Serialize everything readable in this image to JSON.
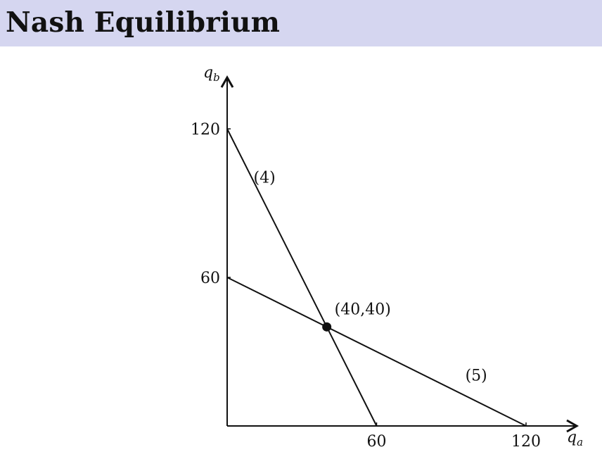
{
  "header": {
    "title": "Nash Equilibrium"
  },
  "chart_data": {
    "type": "line",
    "xlabel": "q_a",
    "ylabel": "q_b",
    "xlim": [
      0,
      125
    ],
    "ylim": [
      0,
      125
    ],
    "x_ticks": [
      60,
      120
    ],
    "y_ticks": [
      60,
      120
    ],
    "series": [
      {
        "name": "(4)",
        "points": [
          [
            0,
            120
          ],
          [
            60,
            0
          ]
        ]
      },
      {
        "name": "(5)",
        "points": [
          [
            0,
            60
          ],
          [
            120,
            0
          ]
        ]
      }
    ],
    "equilibrium": {
      "label": "(40,40)",
      "x": 40,
      "y": 40
    },
    "colors": {
      "ink": "#111111",
      "title_band": "#d5d6f0"
    }
  }
}
